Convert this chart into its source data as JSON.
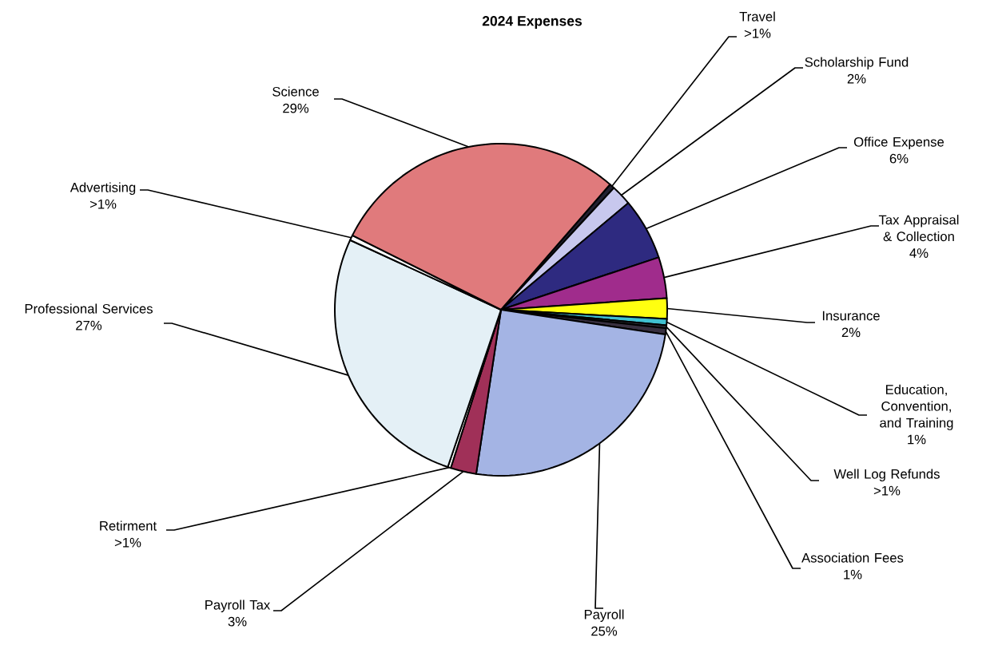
{
  "chart_data": {
    "type": "pie",
    "title": "2024 Expenses",
    "categories": [
      "Travel",
      "Scholarship Fund",
      "Office Expense",
      "Tax Appraisal & Collection",
      "Insurance",
      "Education, Convention, and Training",
      "Well Log Refunds",
      "Association Fees",
      "Payroll",
      "Payroll Tax",
      "Retirment",
      "Professional Services",
      "Advertising",
      "Science"
    ],
    "values": [
      0.5,
      2,
      6,
      4,
      2,
      0.6,
      0.3,
      0.6,
      25,
      2.5,
      0.3,
      26.7,
      0.5,
      29
    ],
    "value_labels": [
      ">1%",
      "2%",
      "6%",
      "4%",
      "2%",
      "1%",
      ">1%",
      "1%",
      "25%",
      "3%",
      ">1%",
      "27%",
      ">1%",
      "29%"
    ],
    "colors": [
      "#202030",
      "#c8c8ee",
      "#2e2a80",
      "#a02c8c",
      "#ffff10",
      "#40c0d0",
      "#303038",
      "#383040",
      "#a4b4e4",
      "#a03058",
      "#ffffff",
      "#e4f0f6",
      "#ffffff",
      "#e07a7c"
    ]
  }
}
